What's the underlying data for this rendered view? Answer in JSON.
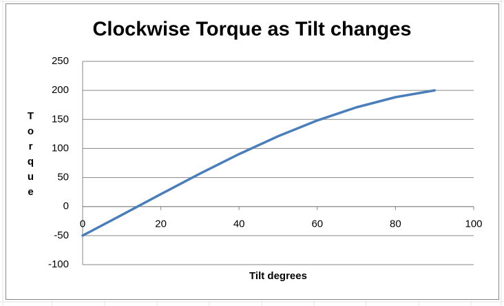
{
  "chart_data": {
    "type": "line",
    "title": "Clockwise Torque as Tilt changes",
    "x_label": "Tilt degrees",
    "y_label": "Torque",
    "x": [
      0,
      10,
      20,
      30,
      40,
      50,
      60,
      70,
      80,
      90
    ],
    "values": [
      -50,
      -14.5,
      21.4,
      56.7,
      90.3,
      121.1,
      148.2,
      170.8,
      188.3,
      200
    ],
    "color": "#4a7ebb",
    "xlim": [
      0,
      100
    ],
    "xticks": [
      0,
      20,
      40,
      60,
      80,
      100
    ],
    "ylim": [
      -100,
      250
    ],
    "yticks": [
      -100,
      -50,
      0,
      50,
      100,
      150,
      200,
      250
    ],
    "grid": true
  }
}
